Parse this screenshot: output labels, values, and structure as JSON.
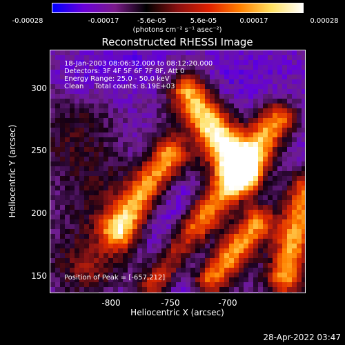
{
  "colorbar": {
    "ticks": [
      "-0.00028",
      "-0.00017",
      "-5.6e-05",
      "5.6e-05",
      "0.00017",
      "0.00028"
    ],
    "units": "(photons cm⁻² s⁻¹ asec⁻²)",
    "colors": [
      "#0000ff",
      "#6a00d8",
      "#7a1a8a",
      "#000000",
      "#8a1010",
      "#e02000",
      "#ff8000",
      "#ffe060",
      "#ffffff"
    ]
  },
  "title": "Reconstructed RHESSI Image",
  "annotations": {
    "line1": "18-Jan-2003 08:06:32.000 to 08:12:20.000",
    "line2": "Detectors: 3F 4F 5F 6F 7F 8F, Att 0",
    "line3": "Energy Range: 25.0 - 50.0 keV",
    "line4": "Clean     Total counts: 8.19E+03",
    "peak": "Position of Peak = [-657,212]"
  },
  "axes": {
    "xlabel": "Heliocentric X (arcsec)",
    "ylabel": "Heliocentric Y (arcsec)",
    "xticks": [
      "-800",
      "-750",
      "-700"
    ],
    "yticks": [
      "300",
      "250",
      "200",
      "150"
    ]
  },
  "timestamp": "28-Apr-2022 03:47"
}
